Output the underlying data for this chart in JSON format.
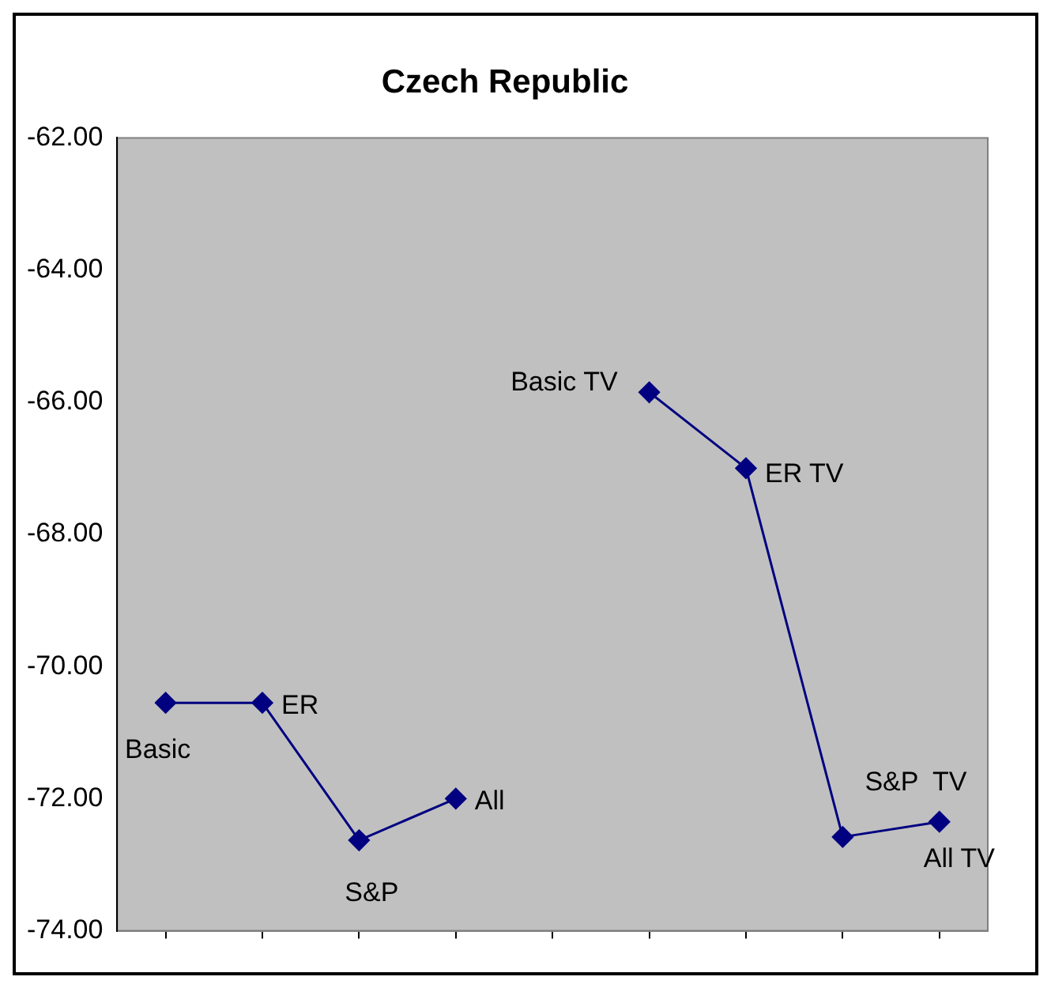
{
  "chart_data": {
    "type": "line",
    "title": "Czech Republic",
    "categories": [
      null,
      null,
      null,
      null,
      null,
      null,
      null,
      null,
      null
    ],
    "series": [
      {
        "color": "#000080",
        "values": [
          -70.55,
          -70.55,
          -72.63,
          -72.0,
          null,
          -65.85,
          -67.0,
          -72.58,
          -72.35
        ],
        "value_labels": [
          "Basic",
          "ER",
          "S&P",
          "All",
          null,
          "Basic TV",
          "ER TV",
          "S&P  TV",
          "All TV"
        ]
      }
    ],
    "ylim": [
      -74,
      -62
    ],
    "yticks": [
      {
        "value": -74,
        "label": "-74.00"
      },
      {
        "value": -72,
        "label": "-72.00"
      },
      {
        "value": -70,
        "label": "-70.00"
      },
      {
        "value": -68,
        "label": "-68.00"
      },
      {
        "value": -66,
        "label": "-66.00"
      },
      {
        "value": -64,
        "label": "-64.00"
      },
      {
        "value": -62,
        "label": "-62.00"
      }
    ],
    "grid": false,
    "legend": false,
    "marker": "diamond",
    "line_style": "solid"
  }
}
